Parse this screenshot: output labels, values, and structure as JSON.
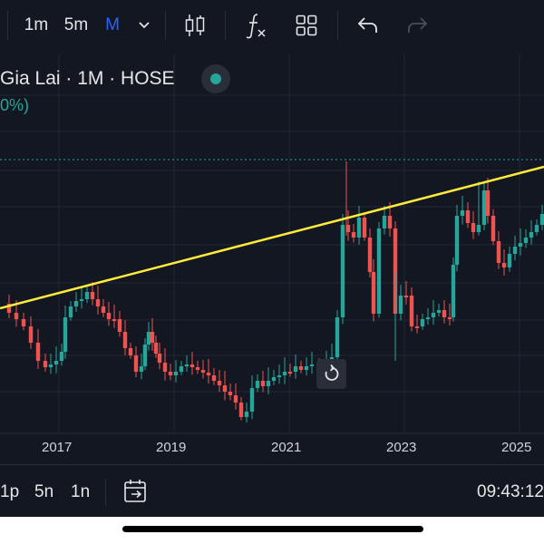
{
  "toolbar": {
    "intervals": [
      "1m",
      "5m",
      "M"
    ],
    "active_interval": "M",
    "icons": [
      "chevron-down-icon",
      "candles-icon",
      "formula-icon",
      "layout-grid-icon",
      "undo-icon",
      "redo-icon"
    ]
  },
  "legend": {
    "symbol_text": "Gia Lai · 1M · HOSE",
    "change_text": "0%)"
  },
  "chart_data": {
    "type": "candlestick",
    "x_ticks": [
      "2017",
      "2019",
      "2021",
      "2023",
      "2025"
    ],
    "trendline_color": "#ffeb3b",
    "up_color": "#26a69a",
    "down_color": "#ef5350",
    "grid": true
  },
  "bottom": {
    "ranges": [
      "1p",
      "5n",
      "1n"
    ],
    "time": "09:43:12"
  }
}
